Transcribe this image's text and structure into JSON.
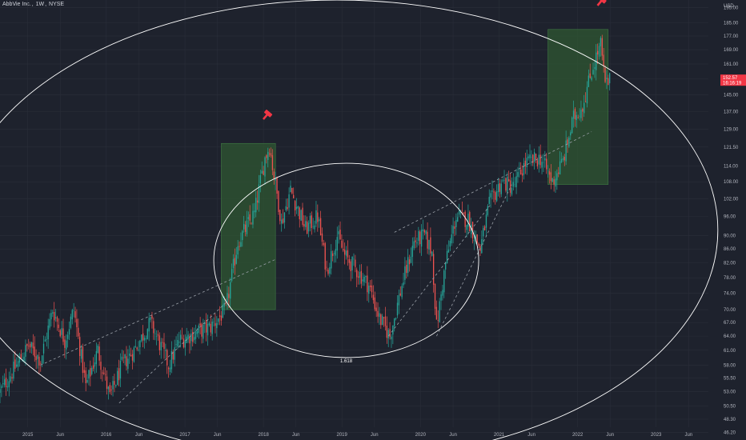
{
  "header": {
    "symbol_name": "AbbVie Inc.",
    "interval": "1W",
    "exchange": "NYSE"
  },
  "colors": {
    "background": "#1e222d",
    "up": "#26a69a",
    "down": "#ef5350",
    "box_fill": "#2f5a32",
    "ellipse": "#ffffff",
    "trend": "#9aa0a8",
    "price_badge": "#f23645",
    "marker": "#f23645"
  },
  "icons": {
    "marker": "hammer-icon"
  },
  "chart_data": {
    "type": "candlestick",
    "y_axis_title": "USD",
    "y_scale": "log",
    "ylim": [
      45,
      200
    ],
    "y_ticks": [
      "195.00",
      "185.00",
      "177.00",
      "169.00",
      "161.00",
      "153.00",
      "145.00",
      "137.00",
      "129.00",
      "121.50",
      "114.00",
      "108.00",
      "102.00",
      "96.00",
      "90.00",
      "86.00",
      "82.00",
      "78.00",
      "74.00",
      "70.00",
      "67.00",
      "64.00",
      "61.00",
      "58.00",
      "55.50",
      "53.00",
      "50.50",
      "48.30",
      "46.20"
    ],
    "x_range": [
      "2014-08-25",
      "2023-09-01"
    ],
    "x_ticks": [
      {
        "date": "2015-01-01",
        "label": "2015"
      },
      {
        "date": "2015-06-01",
        "label": "Jun"
      },
      {
        "date": "2016-01-01",
        "label": "2016"
      },
      {
        "date": "2016-06-01",
        "label": "Jun"
      },
      {
        "date": "2017-01-01",
        "label": "2017"
      },
      {
        "date": "2017-06-01",
        "label": "Jun"
      },
      {
        "date": "2018-01-01",
        "label": "2018"
      },
      {
        "date": "2018-06-01",
        "label": "Jun"
      },
      {
        "date": "2019-01-01",
        "label": "2019"
      },
      {
        "date": "2019-06-01",
        "label": "Jun"
      },
      {
        "date": "2020-01-01",
        "label": "2020"
      },
      {
        "date": "2020-06-01",
        "label": "Jun"
      },
      {
        "date": "2021-01-01",
        "label": "2021"
      },
      {
        "date": "2021-06-01",
        "label": "Jun"
      },
      {
        "date": "2022-01-01",
        "label": "2022"
      },
      {
        "date": "2022-06-01",
        "label": "Jun"
      },
      {
        "date": "2023-01-01",
        "label": "2023"
      },
      {
        "date": "2023-06-01",
        "label": "Jun"
      }
    ],
    "price_path": [
      {
        "date": "2014-08-25",
        "price": 53
      },
      {
        "date": "2014-11-10",
        "price": 58
      },
      {
        "date": "2015-01-05",
        "price": 62
      },
      {
        "date": "2015-03-02",
        "price": 59
      },
      {
        "date": "2015-04-27",
        "price": 70
      },
      {
        "date": "2015-06-22",
        "price": 63
      },
      {
        "date": "2015-08-03",
        "price": 70
      },
      {
        "date": "2015-09-28",
        "price": 54
      },
      {
        "date": "2015-11-23",
        "price": 61
      },
      {
        "date": "2016-01-18",
        "price": 52
      },
      {
        "date": "2016-03-14",
        "price": 58
      },
      {
        "date": "2016-05-09",
        "price": 61
      },
      {
        "date": "2016-07-25",
        "price": 67
      },
      {
        "date": "2016-10-17",
        "price": 58
      },
      {
        "date": "2016-12-05",
        "price": 63
      },
      {
        "date": "2017-03-06",
        "price": 65
      },
      {
        "date": "2017-05-01",
        "price": 66
      },
      {
        "date": "2017-07-10",
        "price": 70
      },
      {
        "date": "2017-09-04",
        "price": 88
      },
      {
        "date": "2017-11-20",
        "price": 97
      },
      {
        "date": "2018-01-08",
        "price": 117
      },
      {
        "date": "2018-01-29",
        "price": 122
      },
      {
        "date": "2018-02-12",
        "price": 114
      },
      {
        "date": "2018-03-26",
        "price": 94
      },
      {
        "date": "2018-05-07",
        "price": 105
      },
      {
        "date": "2018-07-16",
        "price": 92
      },
      {
        "date": "2018-09-10",
        "price": 96
      },
      {
        "date": "2018-10-22",
        "price": 80
      },
      {
        "date": "2018-12-10",
        "price": 90
      },
      {
        "date": "2019-01-14",
        "price": 84
      },
      {
        "date": "2019-03-11",
        "price": 80
      },
      {
        "date": "2019-05-06",
        "price": 76
      },
      {
        "date": "2019-06-24",
        "price": 68
      },
      {
        "date": "2019-08-12",
        "price": 64
      },
      {
        "date": "2019-10-07",
        "price": 76
      },
      {
        "date": "2019-12-02",
        "price": 88
      },
      {
        "date": "2020-01-20",
        "price": 90
      },
      {
        "date": "2020-02-24",
        "price": 85
      },
      {
        "date": "2020-03-16",
        "price": 66
      },
      {
        "date": "2020-04-27",
        "price": 82
      },
      {
        "date": "2020-06-15",
        "price": 96
      },
      {
        "date": "2020-08-10",
        "price": 95
      },
      {
        "date": "2020-10-05",
        "price": 86
      },
      {
        "date": "2020-11-16",
        "price": 100
      },
      {
        "date": "2021-01-11",
        "price": 108
      },
      {
        "date": "2021-03-08",
        "price": 106
      },
      {
        "date": "2021-05-03",
        "price": 115
      },
      {
        "date": "2021-07-12",
        "price": 117
      },
      {
        "date": "2021-09-06",
        "price": 108
      },
      {
        "date": "2021-10-25",
        "price": 116
      },
      {
        "date": "2021-12-13",
        "price": 134
      },
      {
        "date": "2022-01-24",
        "price": 140
      },
      {
        "date": "2022-03-14",
        "price": 160
      },
      {
        "date": "2022-04-18",
        "price": 172
      },
      {
        "date": "2022-05-09",
        "price": 150
      },
      {
        "date": "2022-05-30",
        "price": 152
      }
    ],
    "last_price": {
      "price": 152,
      "lines": [
        "152.57",
        "16:16:19"
      ]
    },
    "annotations": {
      "rectangles": [
        {
          "from": "2017-06-19",
          "to": "2018-02-26",
          "low": 70,
          "high": 123
        },
        {
          "from": "2021-08-16",
          "to": "2022-05-23",
          "low": 107,
          "high": 181
        }
      ],
      "inner_ellipse": {
        "from": "2017-05-15",
        "to": "2020-09-28",
        "low": 59.5,
        "high": 115,
        "label": "1.618"
      },
      "outer_ellipse": {
        "from": "2014-02-01",
        "to": "2023-10-15",
        "low": 42,
        "high": 200
      },
      "trendlines": [
        {
          "from": {
            "date": "2015-03-01",
            "price": 58
          },
          "to": {
            "date": "2018-02-26",
            "price": 83
          }
        },
        {
          "from": {
            "date": "2016-03-01",
            "price": 51
          },
          "to": {
            "date": "2017-07-17",
            "price": 72
          }
        },
        {
          "from": {
            "date": "2019-08-05",
            "price": 64
          },
          "to": {
            "date": "2020-11-23",
            "price": 100
          }
        },
        {
          "from": {
            "date": "2019-09-02",
            "price": 91
          },
          "to": {
            "date": "2022-03-07",
            "price": 128
          }
        },
        {
          "from": {
            "date": "2020-03-16",
            "price": 64
          },
          "to": {
            "date": "2021-03-01",
            "price": 107
          }
        }
      ],
      "markers": [
        {
          "date": "2018-01-22",
          "price": 136
        },
        {
          "date": "2022-04-25",
          "price": 200
        }
      ]
    }
  }
}
